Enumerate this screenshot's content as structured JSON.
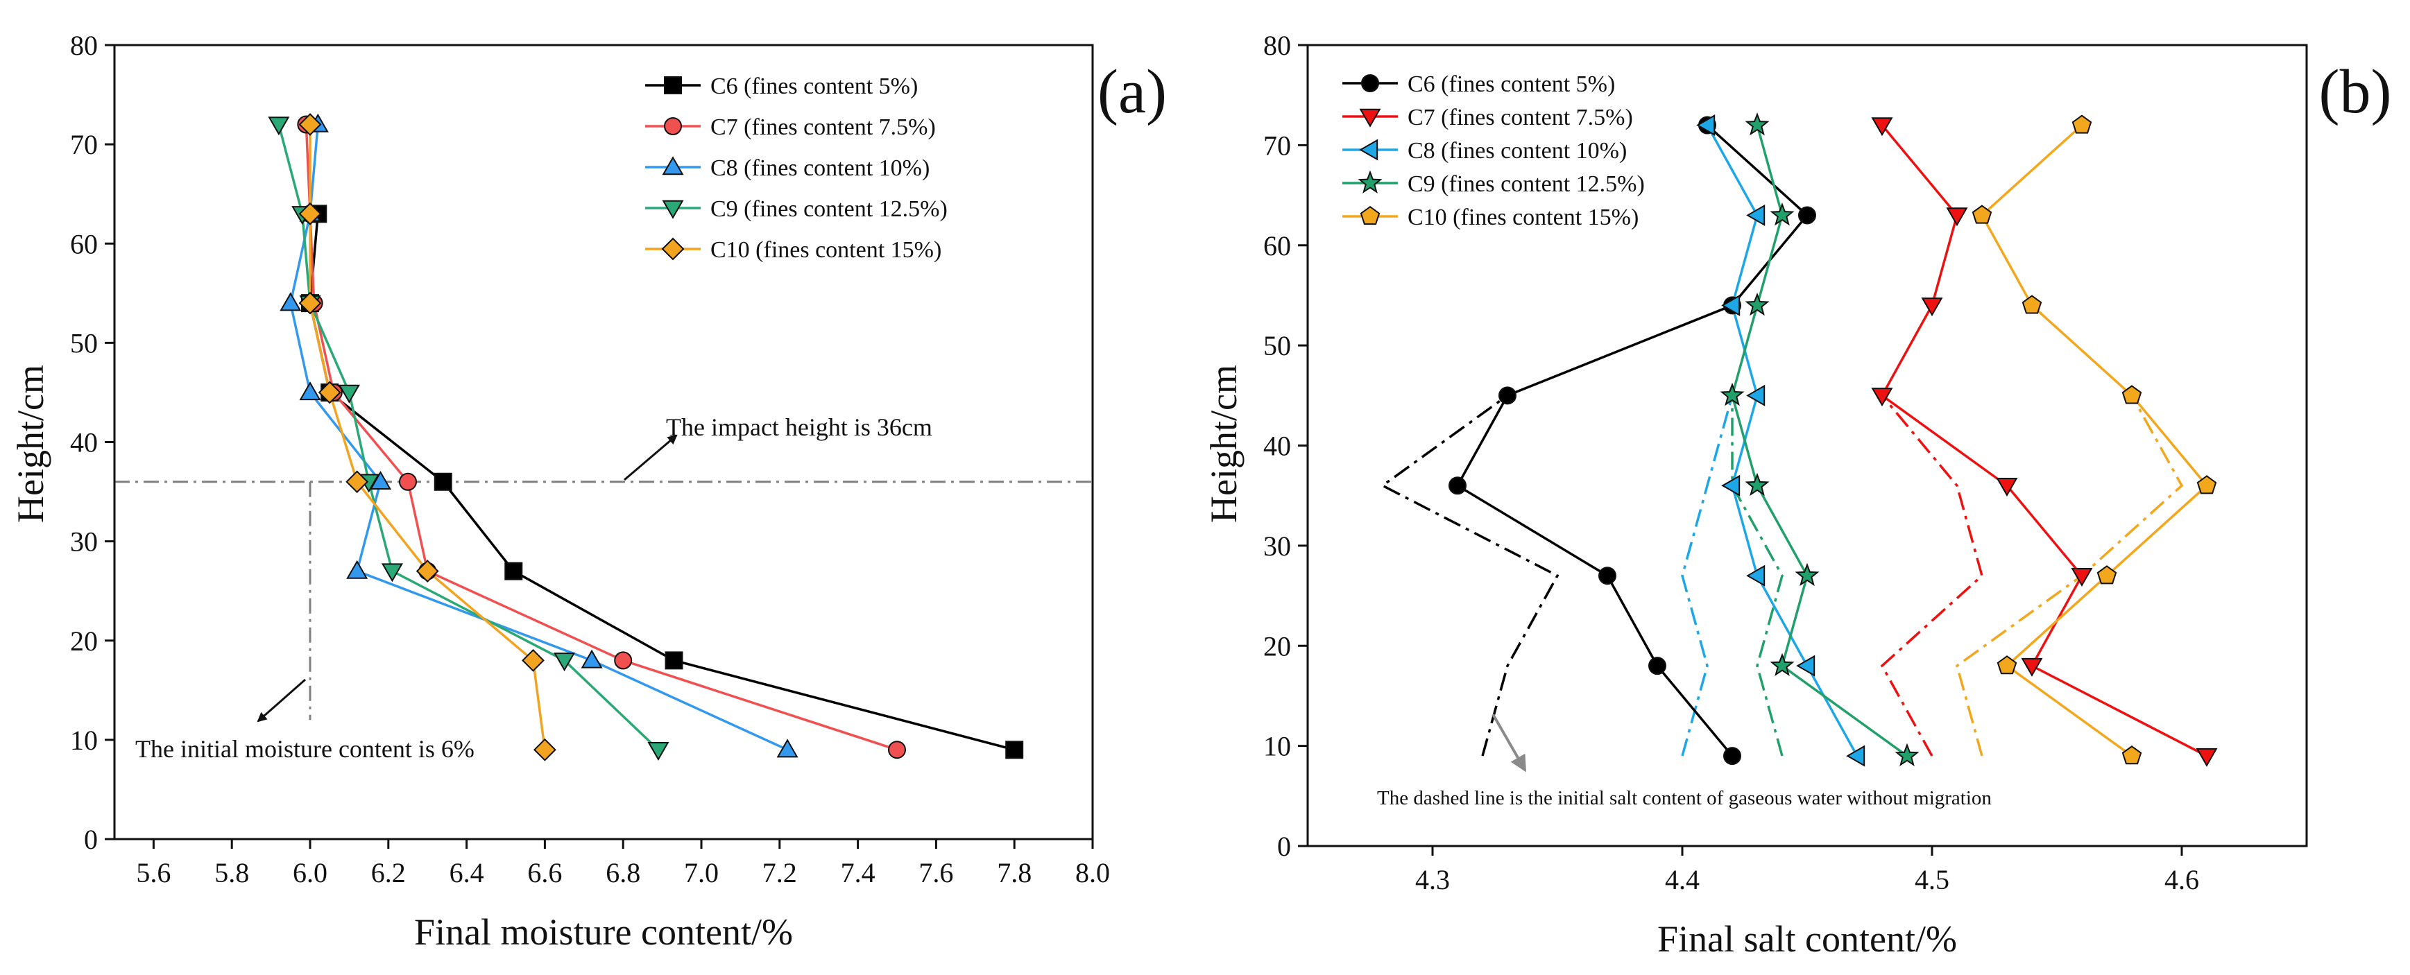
{
  "chart_data": [
    {
      "panel_label": "(a)",
      "type": "line",
      "xlabel": "Final moisture content/%",
      "ylabel": "Height/cm",
      "xlim": [
        5.5,
        8.0
      ],
      "ylim": [
        0,
        80
      ],
      "xticks": [
        "5.6",
        "5.8",
        "6.0",
        "6.2",
        "6.4",
        "6.6",
        "6.8",
        "7.0",
        "7.2",
        "7.4",
        "7.6",
        "7.8",
        "8.0"
      ],
      "yticks": [
        "0",
        "10",
        "20",
        "30",
        "40",
        "50",
        "60",
        "70",
        "80"
      ],
      "grid": false,
      "legend_position": "top-right",
      "series": [
        {
          "name": "C6 (fines content 5%)",
          "color": "#000000",
          "marker": "square",
          "points": [
            [
              6.02,
              63
            ],
            [
              6.0,
              54
            ],
            [
              6.05,
              45
            ],
            [
              6.34,
              36
            ],
            [
              6.52,
              27
            ],
            [
              6.93,
              18
            ],
            [
              7.8,
              9
            ]
          ]
        },
        {
          "name": "C7 (fines content 7.5%)",
          "color": "#f0504f",
          "marker": "circle",
          "points": [
            [
              5.99,
              72
            ],
            [
              6.0,
              63
            ],
            [
              6.01,
              54
            ],
            [
              6.06,
              45
            ],
            [
              6.25,
              36
            ],
            [
              6.3,
              27
            ],
            [
              6.8,
              18
            ],
            [
              7.5,
              9
            ]
          ]
        },
        {
          "name": "C8 (fines content 10%)",
          "color": "#3399ee",
          "marker": "triangle-up",
          "points": [
            [
              6.02,
              72
            ],
            [
              6.0,
              63
            ],
            [
              5.95,
              54
            ],
            [
              6.0,
              45
            ],
            [
              6.18,
              36
            ],
            [
              6.12,
              27
            ],
            [
              6.72,
              18
            ],
            [
              7.22,
              9
            ]
          ]
        },
        {
          "name": "C9 (fines content 12.5%)",
          "color": "#2aa876",
          "marker": "triangle-down",
          "points": [
            [
              5.92,
              72
            ],
            [
              5.98,
              63
            ],
            [
              6.0,
              54
            ],
            [
              6.1,
              45
            ],
            [
              6.15,
              36
            ],
            [
              6.21,
              27
            ],
            [
              6.65,
              18
            ],
            [
              6.89,
              9
            ]
          ]
        },
        {
          "name": "C10 (fines content 15%)",
          "color": "#f2a31f",
          "marker": "diamond",
          "points": [
            [
              6.0,
              72
            ],
            [
              6.0,
              63
            ],
            [
              6.0,
              54
            ],
            [
              6.05,
              45
            ],
            [
              6.12,
              36
            ],
            [
              6.3,
              27
            ],
            [
              6.57,
              18
            ],
            [
              6.6,
              9
            ]
          ]
        }
      ],
      "reference_lines": [
        {
          "kind": "horizontal",
          "value": 36,
          "color": "#808080"
        },
        {
          "kind": "vertical",
          "value": 6.0,
          "color": "#808080"
        }
      ],
      "annotations": [
        {
          "text": "The impact height is 36cm"
        },
        {
          "text": "The initial moisture content is 6%"
        }
      ]
    },
    {
      "panel_label": "(b)",
      "type": "line",
      "xlabel": "Final salt content/%",
      "ylabel": "Height/cm",
      "xlim": [
        4.25,
        4.65
      ],
      "ylim": [
        0,
        80
      ],
      "xticks": [
        "4.3",
        "4.4",
        "4.5",
        "4.6"
      ],
      "yticks": [
        "0",
        "10",
        "20",
        "30",
        "40",
        "50",
        "60",
        "70",
        "80"
      ],
      "grid": false,
      "legend_position": "top-left",
      "series": [
        {
          "name": "C6 (fines content 5%)",
          "color": "#000000",
          "marker": "circle",
          "points": [
            [
              4.42,
              9
            ],
            [
              4.39,
              18
            ],
            [
              4.37,
              27
            ],
            [
              4.31,
              36
            ],
            [
              4.33,
              45
            ],
            [
              4.42,
              54
            ],
            [
              4.45,
              63
            ],
            [
              4.41,
              72
            ]
          ],
          "initial": [
            [
              4.32,
              9
            ],
            [
              4.33,
              18
            ],
            [
              4.35,
              27
            ],
            [
              4.28,
              36
            ],
            [
              4.33,
              45
            ]
          ]
        },
        {
          "name": "C7 (fines content 7.5%)",
          "color": "#ee1111",
          "marker": "triangle-down",
          "points": [
            [
              4.61,
              9
            ],
            [
              4.54,
              18
            ],
            [
              4.56,
              27
            ],
            [
              4.53,
              36
            ],
            [
              4.48,
              45
            ],
            [
              4.5,
              54
            ],
            [
              4.51,
              63
            ],
            [
              4.48,
              72
            ]
          ],
          "initial": [
            [
              4.5,
              9
            ],
            [
              4.48,
              18
            ],
            [
              4.52,
              27
            ],
            [
              4.51,
              36
            ],
            [
              4.48,
              45
            ]
          ]
        },
        {
          "name": "C8 (fines content 10%)",
          "color": "#1ea7e6",
          "marker": "triangle-left",
          "points": [
            [
              4.47,
              9
            ],
            [
              4.45,
              18
            ],
            [
              4.43,
              27
            ],
            [
              4.42,
              36
            ],
            [
              4.43,
              45
            ],
            [
              4.42,
              54
            ],
            [
              4.43,
              63
            ],
            [
              4.41,
              72
            ]
          ],
          "initial": [
            [
              4.4,
              9
            ],
            [
              4.41,
              18
            ],
            [
              4.4,
              27
            ],
            [
              4.41,
              36
            ],
            [
              4.42,
              45
            ]
          ]
        },
        {
          "name": "C9 (fines content 12.5%)",
          "color": "#22a06b",
          "marker": "star",
          "points": [
            [
              4.49,
              9
            ],
            [
              4.44,
              18
            ],
            [
              4.45,
              27
            ],
            [
              4.43,
              36
            ],
            [
              4.42,
              45
            ],
            [
              4.43,
              54
            ],
            [
              4.44,
              63
            ],
            [
              4.43,
              72
            ]
          ],
          "initial": [
            [
              4.44,
              9
            ],
            [
              4.43,
              18
            ],
            [
              4.44,
              27
            ],
            [
              4.42,
              36
            ],
            [
              4.42,
              45
            ]
          ]
        },
        {
          "name": "C10 (fines content 15%)",
          "color": "#f2a71d",
          "marker": "pentagon",
          "points": [
            [
              4.58,
              9
            ],
            [
              4.53,
              18
            ],
            [
              4.57,
              27
            ],
            [
              4.61,
              36
            ],
            [
              4.58,
              45
            ],
            [
              4.54,
              54
            ],
            [
              4.52,
              63
            ],
            [
              4.56,
              72
            ]
          ],
          "initial": [
            [
              4.52,
              9
            ],
            [
              4.51,
              18
            ],
            [
              4.56,
              27
            ],
            [
              4.6,
              36
            ],
            [
              4.58,
              45
            ]
          ]
        }
      ],
      "annotations": [
        {
          "text": "The dashed line is the initial salt content of gaseous water without migration"
        }
      ]
    }
  ]
}
